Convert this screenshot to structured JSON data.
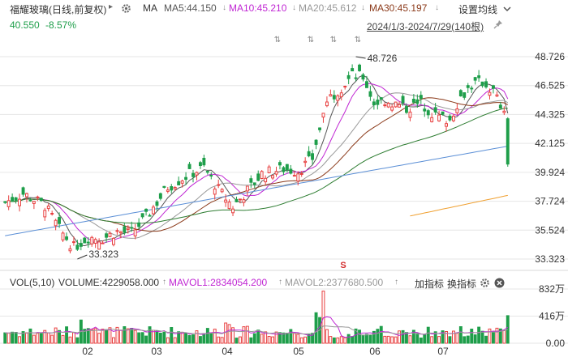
{
  "header": {
    "stock_name": "福耀玻璃(日线,前复权)",
    "dropdown_glyph": "▸",
    "ma_label": "MA",
    "ma5": "MA5:44.150",
    "ma10": "MA10:45.210",
    "ma20": "MA20:45.612",
    "ma30": "MA30:45.197",
    "down_arrow": "↓",
    "settings_label": "设置均线",
    "price": "40.550",
    "change": "-8.57%",
    "range": "2024/1/3-2024/7/29(140根)"
  },
  "volume_header": {
    "title": "VOL(5,10)",
    "volume": "VOLUME:4229058.000",
    "mavol1": "MAVOL1:2834054.200",
    "mavol2": "MAVOL2:2377680.500",
    "add_indicator": "加指标",
    "switch_indicator": "换指标"
  },
  "colors": {
    "up": "#e84040",
    "down": "#1e9e4a",
    "ma5": "#555555",
    "ma10": "#c026d3",
    "ma20": "#999999",
    "ma30": "#8b3a1a",
    "ma60": "#2e7d32",
    "ma120": "#5b8fd6",
    "ma250": "#f0a030"
  },
  "chart_data": {
    "type": "candlestick",
    "price_axis": {
      "ticks": [
        "48.726",
        "46.525",
        "44.325",
        "42.125",
        "39.924",
        "37.724",
        "35.524",
        "33.323"
      ],
      "ylim": [
        33.323,
        48.726
      ]
    },
    "volume_axis": {
      "ticks": [
        "832万",
        "416万",
        "0.00"
      ],
      "ylim": [
        0,
        8320000
      ]
    },
    "x_ticks": [
      "02",
      "03",
      "04",
      "05",
      "06",
      "07"
    ],
    "annotations": [
      {
        "label": "48.726",
        "type": "high"
      },
      {
        "label": "33.323",
        "type": "low"
      }
    ],
    "last_close": 40.55,
    "last_change_pct": -8.57,
    "bar_count": 140
  }
}
